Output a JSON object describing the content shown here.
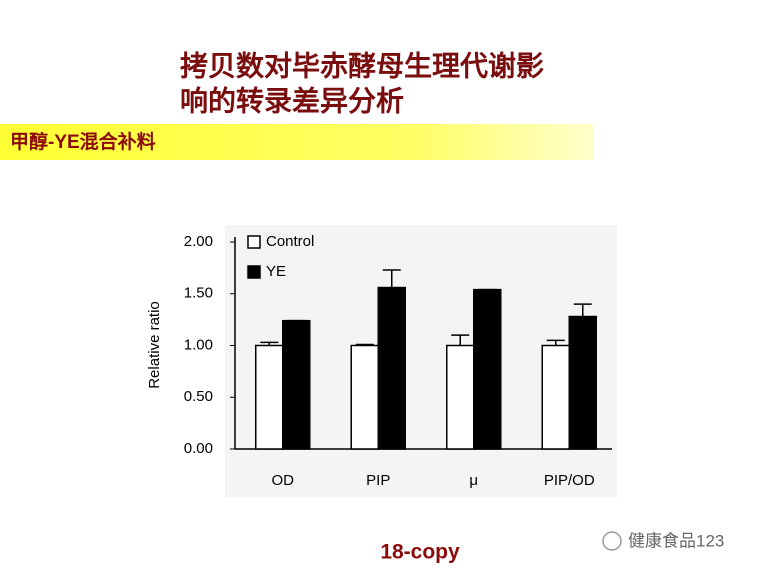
{
  "slide": {
    "title_lines": [
      "拷贝数对毕赤酵母生理代谢影",
      "响的转录差异分析"
    ],
    "banner": "甲醇-YE混合补料",
    "footer": "18-copy",
    "watermark": "健康食品123"
  },
  "chart_data": {
    "type": "bar",
    "ylabel": "Relative ratio",
    "categories": [
      "OD",
      "PIP",
      "μ",
      "PIP/OD"
    ],
    "series": [
      {
        "name": "Control",
        "color": "#ffffff",
        "values": [
          1.0,
          1.0,
          1.0,
          1.0
        ],
        "errors": [
          0.03,
          0.01,
          0.1,
          0.05
        ]
      },
      {
        "name": "YE",
        "color": "#000000",
        "values": [
          1.24,
          1.56,
          1.54,
          1.28
        ],
        "errors": [
          0,
          0.17,
          0,
          0.12
        ]
      }
    ],
    "ylim": [
      0,
      2
    ],
    "yticks": [
      {
        "value": 0,
        "label": "0.00"
      },
      {
        "value": 0.5,
        "label": "0.50"
      },
      {
        "value": 1,
        "label": "1.00"
      },
      {
        "value": 1.5,
        "label": "1.50"
      },
      {
        "value": 2,
        "label": "2.00"
      }
    ],
    "legend": "upper left",
    "grid": false
  }
}
